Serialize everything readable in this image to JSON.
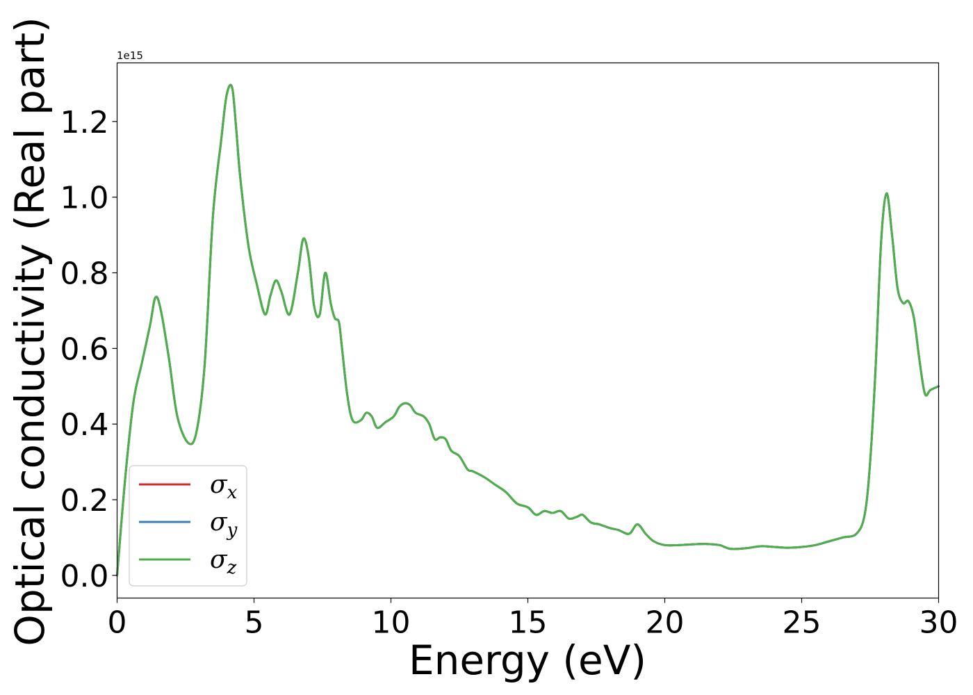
{
  "chart_data": {
    "type": "line",
    "xlabel": "Energy (eV)",
    "ylabel": "Optical conductivity (Real part)",
    "y_offset_label": "1e15",
    "xlim": [
      0,
      30
    ],
    "ylim": [
      -0.06,
      1.355
    ],
    "x_ticks": [
      0,
      5,
      10,
      15,
      20,
      25,
      30
    ],
    "x_tick_labels": [
      "0",
      "5",
      "10",
      "15",
      "20",
      "25",
      "30"
    ],
    "y_ticks": [
      0.0,
      0.2,
      0.4,
      0.6,
      0.8,
      1.0,
      1.2
    ],
    "y_tick_labels": [
      "0.0",
      "0.2",
      "0.4",
      "0.6",
      "0.8",
      "1.0",
      "1.2"
    ],
    "grid": false,
    "legend_position": "lower-left",
    "x": [
      0.0,
      0.3,
      0.6,
      0.9,
      1.2,
      1.4,
      1.6,
      1.9,
      2.2,
      2.6,
      2.9,
      3.2,
      3.5,
      3.8,
      4.0,
      4.2,
      4.35,
      4.5,
      4.8,
      5.1,
      5.4,
      5.6,
      5.8,
      6.0,
      6.3,
      6.6,
      6.8,
      7.0,
      7.2,
      7.4,
      7.6,
      7.8,
      7.95,
      8.1,
      8.2,
      8.4,
      8.6,
      8.9,
      9.1,
      9.3,
      9.5,
      9.8,
      10.1,
      10.3,
      10.5,
      10.7,
      10.9,
      11.2,
      11.4,
      11.6,
      11.8,
      12.0,
      12.2,
      12.5,
      12.8,
      13.0,
      13.4,
      13.8,
      14.2,
      14.6,
      15.0,
      15.3,
      15.6,
      15.9,
      16.2,
      16.5,
      16.8,
      17.0,
      17.3,
      17.6,
      18.0,
      18.3,
      18.7,
      19.0,
      19.3,
      19.6,
      20.0,
      20.5,
      21.0,
      21.5,
      22.0,
      22.4,
      23.0,
      23.5,
      24.0,
      24.5,
      25.0,
      25.5,
      26.0,
      26.5,
      27.0,
      27.3,
      27.5,
      27.7,
      27.9,
      28.1,
      28.3,
      28.5,
      28.7,
      28.9,
      29.1,
      29.3,
      29.5,
      29.7,
      30.0
    ],
    "series": [
      {
        "name": "σx",
        "color": "#d62728",
        "values": [
          0.0,
          0.26,
          0.46,
          0.56,
          0.66,
          0.735,
          0.7,
          0.57,
          0.42,
          0.35,
          0.38,
          0.56,
          0.95,
          1.15,
          1.27,
          1.29,
          1.18,
          1.05,
          0.87,
          0.77,
          0.69,
          0.74,
          0.78,
          0.75,
          0.69,
          0.8,
          0.89,
          0.84,
          0.71,
          0.69,
          0.8,
          0.72,
          0.68,
          0.67,
          0.61,
          0.48,
          0.41,
          0.41,
          0.43,
          0.42,
          0.39,
          0.405,
          0.42,
          0.445,
          0.455,
          0.45,
          0.43,
          0.42,
          0.4,
          0.36,
          0.365,
          0.36,
          0.33,
          0.315,
          0.28,
          0.275,
          0.26,
          0.24,
          0.22,
          0.19,
          0.18,
          0.16,
          0.17,
          0.165,
          0.17,
          0.15,
          0.155,
          0.16,
          0.14,
          0.135,
          0.125,
          0.12,
          0.11,
          0.135,
          0.11,
          0.09,
          0.08,
          0.08,
          0.082,
          0.083,
          0.08,
          0.07,
          0.072,
          0.077,
          0.075,
          0.073,
          0.075,
          0.08,
          0.09,
          0.1,
          0.11,
          0.16,
          0.3,
          0.55,
          0.88,
          1.01,
          0.9,
          0.76,
          0.72,
          0.725,
          0.68,
          0.57,
          0.48,
          0.49,
          0.5
        ]
      },
      {
        "name": "σy",
        "color": "#377eb8",
        "values": [
          0.0,
          0.26,
          0.46,
          0.56,
          0.66,
          0.735,
          0.7,
          0.57,
          0.42,
          0.35,
          0.38,
          0.56,
          0.95,
          1.15,
          1.27,
          1.29,
          1.18,
          1.05,
          0.87,
          0.77,
          0.69,
          0.74,
          0.78,
          0.75,
          0.69,
          0.8,
          0.89,
          0.84,
          0.71,
          0.69,
          0.8,
          0.72,
          0.68,
          0.67,
          0.61,
          0.48,
          0.41,
          0.41,
          0.43,
          0.42,
          0.39,
          0.405,
          0.42,
          0.445,
          0.455,
          0.45,
          0.43,
          0.42,
          0.4,
          0.36,
          0.365,
          0.36,
          0.33,
          0.315,
          0.28,
          0.275,
          0.26,
          0.24,
          0.22,
          0.19,
          0.18,
          0.16,
          0.17,
          0.165,
          0.17,
          0.15,
          0.155,
          0.16,
          0.14,
          0.135,
          0.125,
          0.12,
          0.11,
          0.135,
          0.11,
          0.09,
          0.08,
          0.08,
          0.082,
          0.083,
          0.08,
          0.07,
          0.072,
          0.077,
          0.075,
          0.073,
          0.075,
          0.08,
          0.09,
          0.1,
          0.11,
          0.16,
          0.3,
          0.55,
          0.88,
          1.01,
          0.9,
          0.76,
          0.72,
          0.725,
          0.68,
          0.57,
          0.48,
          0.49,
          0.5
        ]
      },
      {
        "name": "σz",
        "color": "#4daf4a",
        "values": [
          0.0,
          0.26,
          0.46,
          0.56,
          0.66,
          0.735,
          0.7,
          0.57,
          0.42,
          0.35,
          0.38,
          0.56,
          0.95,
          1.15,
          1.27,
          1.29,
          1.18,
          1.05,
          0.87,
          0.77,
          0.69,
          0.74,
          0.78,
          0.75,
          0.69,
          0.8,
          0.89,
          0.84,
          0.71,
          0.69,
          0.8,
          0.72,
          0.68,
          0.67,
          0.61,
          0.48,
          0.41,
          0.41,
          0.43,
          0.42,
          0.39,
          0.405,
          0.42,
          0.445,
          0.455,
          0.45,
          0.43,
          0.42,
          0.4,
          0.36,
          0.365,
          0.36,
          0.33,
          0.315,
          0.28,
          0.275,
          0.26,
          0.24,
          0.22,
          0.19,
          0.18,
          0.16,
          0.17,
          0.165,
          0.17,
          0.15,
          0.155,
          0.16,
          0.14,
          0.135,
          0.125,
          0.12,
          0.11,
          0.135,
          0.11,
          0.09,
          0.08,
          0.08,
          0.082,
          0.083,
          0.08,
          0.07,
          0.072,
          0.077,
          0.075,
          0.073,
          0.075,
          0.08,
          0.09,
          0.1,
          0.11,
          0.16,
          0.3,
          0.55,
          0.88,
          1.01,
          0.9,
          0.76,
          0.72,
          0.725,
          0.68,
          0.57,
          0.48,
          0.49,
          0.5
        ]
      }
    ],
    "legend": [
      {
        "symbol": "σ",
        "subscript": "x",
        "color": "#d62728"
      },
      {
        "symbol": "σ",
        "subscript": "y",
        "color": "#377eb8"
      },
      {
        "symbol": "σ",
        "subscript": "z",
        "color": "#4daf4a"
      }
    ]
  }
}
